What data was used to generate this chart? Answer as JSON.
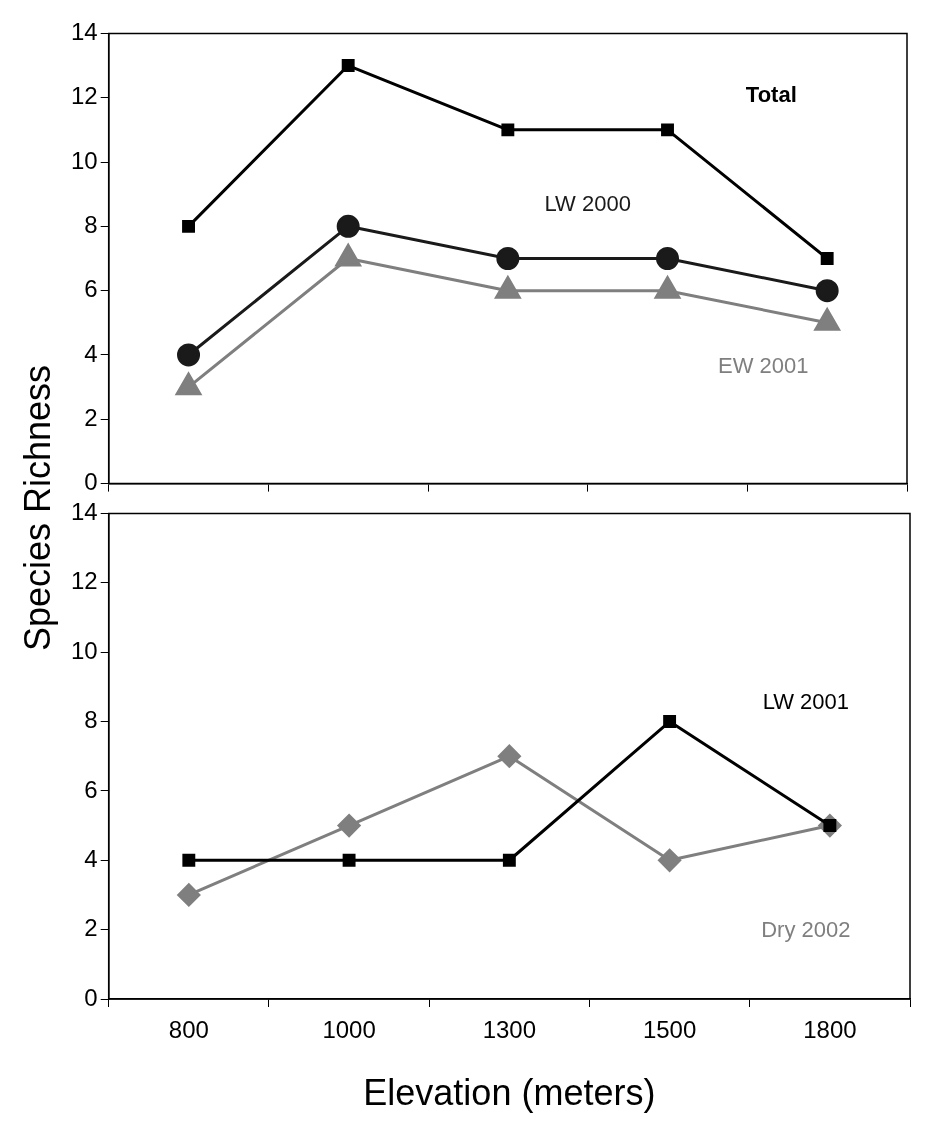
{
  "chart_data": [
    {
      "type": "line",
      "ylabel": "Species Richness",
      "categories": [
        "800",
        "1000",
        "1300",
        "1500",
        "1800"
      ],
      "ylim": [
        0,
        14
      ],
      "yticks": [
        0,
        2,
        4,
        6,
        8,
        10,
        12,
        14
      ],
      "tick_labels": "y",
      "grid": false,
      "legend": false,
      "series": [
        {
          "name": "Total",
          "color": "#000000",
          "marker": "square",
          "values": [
            8,
            13,
            11,
            11,
            7
          ]
        },
        {
          "name": "LW 2000",
          "color": "#1a1a1a",
          "marker": "circle",
          "values": [
            4,
            8,
            7,
            7,
            6
          ]
        },
        {
          "name": "EW 2001",
          "color": "#7f7f7f",
          "marker": "triangle",
          "values": [
            3,
            7,
            6,
            6,
            5
          ]
        }
      ]
    },
    {
      "type": "line",
      "xlabel": "Elevation (meters)",
      "categories": [
        "800",
        "1000",
        "1300",
        "1500",
        "1800"
      ],
      "ylim": [
        0,
        14
      ],
      "yticks": [
        0,
        2,
        4,
        6,
        8,
        10,
        12,
        14
      ],
      "grid": false,
      "legend": false,
      "series": [
        {
          "name": "LW 2001",
          "color": "#000000",
          "marker": "square",
          "values": [
            4,
            4,
            4,
            8,
            5
          ]
        },
        {
          "name": "Dry 2002",
          "color": "#7f7f7f",
          "marker": "diamond",
          "values": [
            3,
            5,
            7,
            4,
            5
          ]
        }
      ]
    }
  ]
}
